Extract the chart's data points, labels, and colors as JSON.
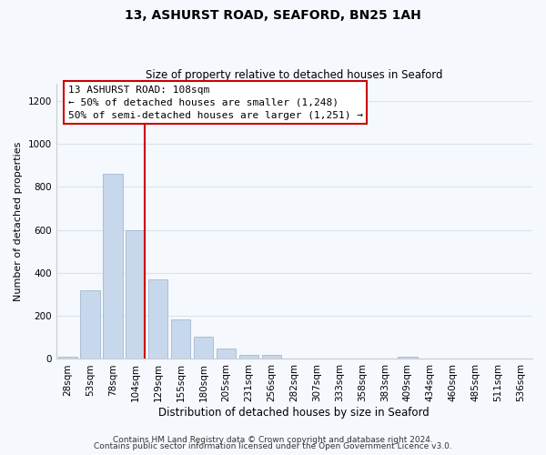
{
  "title": "13, ASHURST ROAD, SEAFORD, BN25 1AH",
  "subtitle": "Size of property relative to detached houses in Seaford",
  "xlabel": "Distribution of detached houses by size in Seaford",
  "ylabel": "Number of detached properties",
  "bar_labels": [
    "28sqm",
    "53sqm",
    "78sqm",
    "104sqm",
    "129sqm",
    "155sqm",
    "180sqm",
    "205sqm",
    "231sqm",
    "256sqm",
    "282sqm",
    "307sqm",
    "333sqm",
    "358sqm",
    "383sqm",
    "409sqm",
    "434sqm",
    "460sqm",
    "485sqm",
    "511sqm",
    "536sqm"
  ],
  "bar_values": [
    12,
    320,
    860,
    600,
    370,
    185,
    105,
    47,
    20,
    20,
    0,
    0,
    0,
    0,
    0,
    12,
    0,
    0,
    0,
    0,
    0
  ],
  "bar_color": "#c8d8ec",
  "bar_edge_color": "#a0b8d0",
  "vline_color": "#cc0000",
  "vline_index": 3,
  "ylim": [
    0,
    1280
  ],
  "yticks": [
    0,
    200,
    400,
    600,
    800,
    1000,
    1200
  ],
  "annotation_title": "13 ASHURST ROAD: 108sqm",
  "annotation_line1": "← 50% of detached houses are smaller (1,248)",
  "annotation_line2": "50% of semi-detached houses are larger (1,251) →",
  "annotation_box_color": "#ffffff",
  "annotation_box_edge": "#cc0000",
  "footer_line1": "Contains HM Land Registry data © Crown copyright and database right 2024.",
  "footer_line2": "Contains public sector information licensed under the Open Government Licence v3.0.",
  "grid_color": "#d8e4f0",
  "background_color": "#f5f8fd",
  "title_fontsize": 10,
  "subtitle_fontsize": 8.5,
  "ylabel_fontsize": 8,
  "xlabel_fontsize": 8.5,
  "tick_fontsize": 7.5,
  "footer_fontsize": 6.5
}
